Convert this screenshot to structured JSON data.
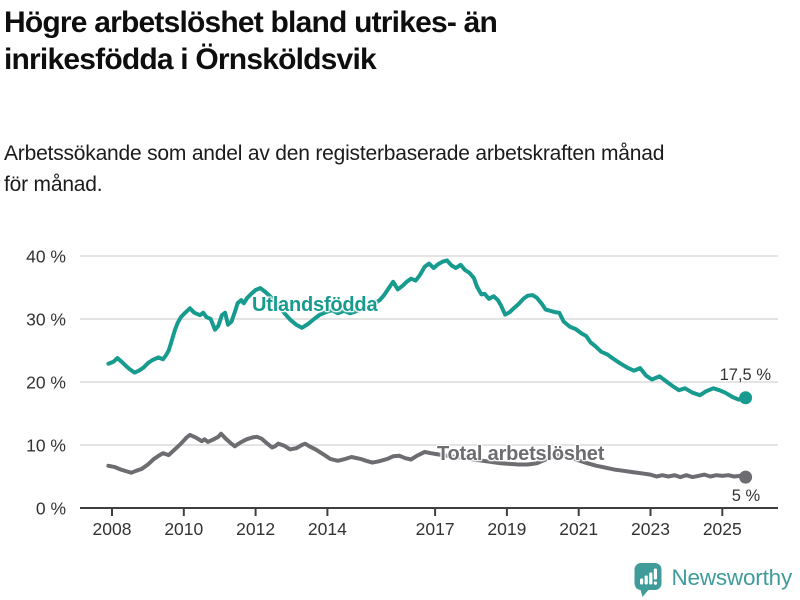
{
  "title": "Högre arbetslöshet bland utrikes- än\ninrikesfödda i Örnsköldsvik",
  "subtitle": "Arbetssökande som andel av den registerbaserade arbetskraften månad\nför månad.",
  "colors": {
    "foreign_born_line": "#169b8e",
    "total_line": "#6c6c71",
    "grid": "#dcdcdc",
    "axis": "#3f3f3f",
    "tick_text": "#333333",
    "brand_teal": "#3f9c9b",
    "title_text": "#0e0e0e"
  },
  "footer": {
    "brand": "Newsworthy"
  },
  "chart_data": {
    "type": "line",
    "title": "Högre arbetslöshet bland utrikes- än inrikesfödda i Örnsköldsvik",
    "subtitle": "Arbetssökande som andel av den registerbaserade arbetskraften månad för månad.",
    "grid": true,
    "legend_position": "inline-labels",
    "x_axis": {
      "range": [
        2007.1,
        2026.55
      ],
      "ticks": [
        {
          "year": 2008,
          "label": "2008"
        },
        {
          "year": 2010,
          "label": "2010"
        },
        {
          "year": 2012,
          "label": "2012"
        },
        {
          "year": 2014,
          "label": "2014"
        },
        {
          "year": 2017,
          "label": "2017"
        },
        {
          "year": 2019,
          "label": "2019"
        },
        {
          "year": 2021,
          "label": "2021"
        },
        {
          "year": 2023,
          "label": "2023"
        },
        {
          "year": 2025,
          "label": "2025"
        }
      ]
    },
    "y_axis": {
      "unit": "%",
      "range": [
        0,
        42
      ],
      "ticks": [
        {
          "value": 0,
          "label": "0 %"
        },
        {
          "value": 10,
          "label": "10 %"
        },
        {
          "value": 20,
          "label": "20 %"
        },
        {
          "value": 30,
          "label": "30 %"
        },
        {
          "value": 40,
          "label": "40 %"
        }
      ]
    },
    "series": [
      {
        "name": "Utlandsfödda",
        "color": "#169b8e",
        "end_label": "17,5 %",
        "end_value": 17.5,
        "points": [
          [
            2007.9,
            22.9
          ],
          [
            2008.04,
            23.2
          ],
          [
            2008.15,
            23.8
          ],
          [
            2008.25,
            23.3
          ],
          [
            2008.38,
            22.6
          ],
          [
            2008.5,
            22.0
          ],
          [
            2008.63,
            21.5
          ],
          [
            2008.75,
            21.8
          ],
          [
            2008.88,
            22.3
          ],
          [
            2009.0,
            23.0
          ],
          [
            2009.13,
            23.5
          ],
          [
            2009.29,
            23.9
          ],
          [
            2009.42,
            23.6
          ],
          [
            2009.5,
            24.2
          ],
          [
            2009.58,
            25.0
          ],
          [
            2009.67,
            26.7
          ],
          [
            2009.75,
            28.2
          ],
          [
            2009.83,
            29.4
          ],
          [
            2009.92,
            30.3
          ],
          [
            2010.04,
            31.0
          ],
          [
            2010.17,
            31.7
          ],
          [
            2010.29,
            31.0
          ],
          [
            2010.45,
            30.6
          ],
          [
            2010.54,
            31.0
          ],
          [
            2010.63,
            30.3
          ],
          [
            2010.75,
            30.0
          ],
          [
            2010.87,
            28.3
          ],
          [
            2010.96,
            28.9
          ],
          [
            2011.06,
            30.6
          ],
          [
            2011.15,
            31.0
          ],
          [
            2011.23,
            29.1
          ],
          [
            2011.33,
            29.6
          ],
          [
            2011.42,
            31.1
          ],
          [
            2011.5,
            32.5
          ],
          [
            2011.6,
            33.0
          ],
          [
            2011.67,
            32.5
          ],
          [
            2011.76,
            33.3
          ],
          [
            2011.88,
            34.0
          ],
          [
            2012.0,
            34.6
          ],
          [
            2012.13,
            34.9
          ],
          [
            2012.29,
            34.2
          ],
          [
            2012.46,
            33.3
          ],
          [
            2012.63,
            32.2
          ],
          [
            2012.79,
            31.0
          ],
          [
            2012.96,
            29.9
          ],
          [
            2013.13,
            29.1
          ],
          [
            2013.29,
            28.6
          ],
          [
            2013.46,
            29.2
          ],
          [
            2013.63,
            30.0
          ],
          [
            2013.79,
            30.7
          ],
          [
            2013.96,
            31.1
          ],
          [
            2014.13,
            31.4
          ],
          [
            2014.29,
            30.9
          ],
          [
            2014.46,
            31.3
          ],
          [
            2014.63,
            30.9
          ],
          [
            2014.79,
            31.2
          ],
          [
            2014.96,
            31.6
          ],
          [
            2015.13,
            31.9
          ],
          [
            2015.29,
            32.4
          ],
          [
            2015.46,
            33.0
          ],
          [
            2015.58,
            33.8
          ],
          [
            2015.71,
            34.9
          ],
          [
            2015.83,
            35.9
          ],
          [
            2015.96,
            34.7
          ],
          [
            2016.08,
            35.2
          ],
          [
            2016.21,
            35.9
          ],
          [
            2016.33,
            36.4
          ],
          [
            2016.46,
            36.1
          ],
          [
            2016.58,
            37.0
          ],
          [
            2016.71,
            38.3
          ],
          [
            2016.83,
            38.8
          ],
          [
            2016.96,
            38.1
          ],
          [
            2017.08,
            38.7
          ],
          [
            2017.21,
            39.1
          ],
          [
            2017.33,
            39.3
          ],
          [
            2017.46,
            38.5
          ],
          [
            2017.58,
            38.1
          ],
          [
            2017.71,
            38.6
          ],
          [
            2017.83,
            37.8
          ],
          [
            2017.96,
            37.3
          ],
          [
            2018.08,
            36.5
          ],
          [
            2018.17,
            35.1
          ],
          [
            2018.29,
            33.9
          ],
          [
            2018.38,
            34.0
          ],
          [
            2018.5,
            33.2
          ],
          [
            2018.63,
            33.6
          ],
          [
            2018.75,
            33.0
          ],
          [
            2018.83,
            32.2
          ],
          [
            2018.95,
            30.7
          ],
          [
            2019.08,
            31.1
          ],
          [
            2019.21,
            31.8
          ],
          [
            2019.33,
            32.4
          ],
          [
            2019.46,
            33.2
          ],
          [
            2019.58,
            33.7
          ],
          [
            2019.71,
            33.8
          ],
          [
            2019.83,
            33.4
          ],
          [
            2019.96,
            32.5
          ],
          [
            2020.08,
            31.5
          ],
          [
            2020.21,
            31.3
          ],
          [
            2020.33,
            31.1
          ],
          [
            2020.46,
            31.0
          ],
          [
            2020.58,
            29.6
          ],
          [
            2020.75,
            28.8
          ],
          [
            2020.92,
            28.4
          ],
          [
            2021.08,
            27.7
          ],
          [
            2021.21,
            27.3
          ],
          [
            2021.33,
            26.3
          ],
          [
            2021.46,
            25.7
          ],
          [
            2021.63,
            24.8
          ],
          [
            2021.79,
            24.4
          ],
          [
            2021.96,
            23.7
          ],
          [
            2022.17,
            22.9
          ],
          [
            2022.38,
            22.2
          ],
          [
            2022.54,
            21.8
          ],
          [
            2022.71,
            22.2
          ],
          [
            2022.88,
            21.0
          ],
          [
            2023.04,
            20.4
          ],
          [
            2023.25,
            20.9
          ],
          [
            2023.46,
            20.0
          ],
          [
            2023.63,
            19.3
          ],
          [
            2023.79,
            18.7
          ],
          [
            2023.96,
            19.0
          ],
          [
            2024.17,
            18.3
          ],
          [
            2024.38,
            17.9
          ],
          [
            2024.54,
            18.5
          ],
          [
            2024.75,
            19.0
          ],
          [
            2024.92,
            18.7
          ],
          [
            2025.08,
            18.3
          ],
          [
            2025.29,
            17.6
          ],
          [
            2025.46,
            17.2
          ],
          [
            2025.65,
            17.5
          ]
        ]
      },
      {
        "name": "Total arbetslöshet",
        "color": "#6c6c71",
        "end_label": "5 %",
        "end_value": 5,
        "points": [
          [
            2007.9,
            6.7
          ],
          [
            2008.08,
            6.5
          ],
          [
            2008.25,
            6.1
          ],
          [
            2008.42,
            5.8
          ],
          [
            2008.54,
            5.6
          ],
          [
            2008.67,
            5.9
          ],
          [
            2008.83,
            6.2
          ],
          [
            2009.0,
            6.9
          ],
          [
            2009.17,
            7.8
          ],
          [
            2009.33,
            8.4
          ],
          [
            2009.42,
            8.7
          ],
          [
            2009.58,
            8.4
          ],
          [
            2009.75,
            9.3
          ],
          [
            2009.92,
            10.2
          ],
          [
            2010.08,
            11.2
          ],
          [
            2010.17,
            11.6
          ],
          [
            2010.33,
            11.2
          ],
          [
            2010.5,
            10.6
          ],
          [
            2010.58,
            10.9
          ],
          [
            2010.67,
            10.5
          ],
          [
            2010.83,
            10.9
          ],
          [
            2010.96,
            11.3
          ],
          [
            2011.04,
            11.8
          ],
          [
            2011.17,
            11.0
          ],
          [
            2011.33,
            10.2
          ],
          [
            2011.42,
            9.8
          ],
          [
            2011.5,
            10.1
          ],
          [
            2011.58,
            10.4
          ],
          [
            2011.75,
            10.9
          ],
          [
            2011.92,
            11.2
          ],
          [
            2012.04,
            11.3
          ],
          [
            2012.17,
            11.0
          ],
          [
            2012.33,
            10.2
          ],
          [
            2012.46,
            9.6
          ],
          [
            2012.54,
            9.8
          ],
          [
            2012.63,
            10.2
          ],
          [
            2012.79,
            9.9
          ],
          [
            2012.96,
            9.3
          ],
          [
            2013.13,
            9.5
          ],
          [
            2013.29,
            10.0
          ],
          [
            2013.38,
            10.2
          ],
          [
            2013.5,
            9.8
          ],
          [
            2013.67,
            9.3
          ],
          [
            2013.92,
            8.4
          ],
          [
            2014.08,
            7.8
          ],
          [
            2014.29,
            7.5
          ],
          [
            2014.5,
            7.8
          ],
          [
            2014.67,
            8.1
          ],
          [
            2014.92,
            7.8
          ],
          [
            2015.08,
            7.5
          ],
          [
            2015.25,
            7.2
          ],
          [
            2015.42,
            7.4
          ],
          [
            2015.67,
            7.8
          ],
          [
            2015.83,
            8.2
          ],
          [
            2016.0,
            8.3
          ],
          [
            2016.17,
            7.9
          ],
          [
            2016.33,
            7.7
          ],
          [
            2016.5,
            8.3
          ],
          [
            2016.71,
            8.9
          ],
          [
            2016.88,
            8.7
          ],
          [
            2017.08,
            8.5
          ],
          [
            2017.33,
            8.3
          ],
          [
            2017.58,
            8.1
          ],
          [
            2017.83,
            7.9
          ],
          [
            2018.08,
            7.7
          ],
          [
            2018.33,
            7.5
          ],
          [
            2018.58,
            7.3
          ],
          [
            2018.83,
            7.1
          ],
          [
            2019.08,
            7.0
          ],
          [
            2019.33,
            6.9
          ],
          [
            2019.58,
            6.9
          ],
          [
            2019.83,
            7.1
          ],
          [
            2020.08,
            7.7
          ],
          [
            2020.29,
            8.2
          ],
          [
            2020.46,
            8.4
          ],
          [
            2020.63,
            8.2
          ],
          [
            2020.83,
            7.9
          ],
          [
            2021.04,
            7.5
          ],
          [
            2021.25,
            7.1
          ],
          [
            2021.5,
            6.7
          ],
          [
            2021.67,
            6.5
          ],
          [
            2021.83,
            6.3
          ],
          [
            2022.0,
            6.1
          ],
          [
            2022.25,
            5.9
          ],
          [
            2022.5,
            5.7
          ],
          [
            2022.75,
            5.5
          ],
          [
            2023.0,
            5.3
          ],
          [
            2023.17,
            5.0
          ],
          [
            2023.33,
            5.2
          ],
          [
            2023.5,
            5.0
          ],
          [
            2023.67,
            5.2
          ],
          [
            2023.83,
            4.9
          ],
          [
            2024.0,
            5.2
          ],
          [
            2024.17,
            4.9
          ],
          [
            2024.33,
            5.1
          ],
          [
            2024.5,
            5.3
          ],
          [
            2024.67,
            5.0
          ],
          [
            2024.83,
            5.2
          ],
          [
            2025.0,
            5.1
          ],
          [
            2025.17,
            5.2
          ],
          [
            2025.33,
            5.0
          ],
          [
            2025.5,
            5.1
          ],
          [
            2025.65,
            4.9
          ]
        ]
      }
    ]
  }
}
